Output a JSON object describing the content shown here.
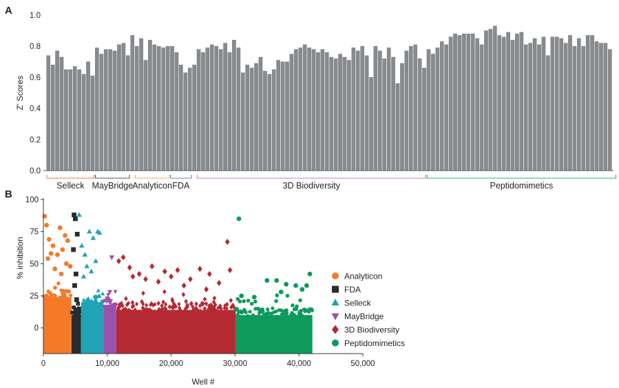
{
  "chart_data": [
    {
      "panel": "A",
      "type": "bar",
      "ylabel": "Z' Scores",
      "ylim": [
        0.0,
        1.0
      ],
      "yticks": [
        "0.0",
        "0.2",
        "0.4",
        "0.6",
        "0.8",
        "1.0"
      ],
      "values": [
        0.74,
        0.68,
        0.77,
        0.73,
        0.65,
        0.65,
        0.67,
        0.65,
        0.62,
        0.7,
        0.61,
        0.79,
        0.75,
        0.78,
        0.78,
        0.77,
        0.81,
        0.82,
        0.74,
        0.87,
        0.8,
        0.85,
        0.71,
        0.84,
        0.81,
        0.8,
        0.79,
        0.8,
        0.8,
        0.76,
        0.68,
        0.63,
        0.66,
        0.68,
        0.78,
        0.76,
        0.79,
        0.81,
        0.8,
        0.78,
        0.82,
        0.76,
        0.84,
        0.79,
        0.63,
        0.68,
        0.66,
        0.69,
        0.73,
        0.64,
        0.62,
        0.65,
        0.71,
        0.7,
        0.7,
        0.75,
        0.78,
        0.79,
        0.81,
        0.79,
        0.78,
        0.76,
        0.78,
        0.76,
        0.73,
        0.72,
        0.75,
        0.73,
        0.71,
        0.79,
        0.77,
        0.8,
        0.74,
        0.6,
        0.8,
        0.77,
        0.72,
        0.79,
        0.73,
        0.56,
        0.69,
        0.77,
        0.8,
        0.81,
        0.72,
        0.66,
        0.78,
        0.75,
        0.79,
        0.83,
        0.81,
        0.86,
        0.88,
        0.87,
        0.88,
        0.88,
        0.88,
        0.85,
        0.81,
        0.9,
        0.91,
        0.93,
        0.87,
        0.86,
        0.89,
        0.84,
        0.88,
        0.89,
        0.81,
        0.82,
        0.85,
        0.81,
        0.86,
        0.74,
        0.86,
        0.86,
        0.85,
        0.82,
        0.87,
        0.8,
        0.85,
        0.8,
        0.87,
        0.87,
        0.83,
        0.82,
        0.82,
        0.78
      ],
      "libraries": [
        {
          "name": "Selleck",
          "start": 0,
          "end": 10,
          "color": "#e8784f"
        },
        {
          "name": "MayBridge",
          "start": 11,
          "end": 18,
          "color": "#555555"
        },
        {
          "name": "Analyticon",
          "start": 20,
          "end": 27,
          "color": "#f0a86a"
        },
        {
          "name": "FDA",
          "start": 28,
          "end": 32,
          "color": "#6b82b8"
        },
        {
          "name": "3D Biodiversity",
          "start": 34,
          "end": 85,
          "color": "#c47fbd"
        },
        {
          "name": "Peptidomimetics",
          "start": 86,
          "end": 128,
          "color": "#3aaa7a"
        }
      ]
    },
    {
      "panel": "B",
      "type": "scatter",
      "xlabel": "Well #",
      "ylabel": "% inhibition",
      "xlim": [
        0,
        50000
      ],
      "ylim": [
        -20,
        100
      ],
      "xticks": [
        "0",
        "10,000",
        "20,000",
        "30,000",
        "40,000",
        "50,000"
      ],
      "yticks": [
        "0",
        "25",
        "50",
        "75",
        "100"
      ],
      "series": [
        {
          "name": "Analyticon",
          "color": "#f47a2a",
          "marker": "circle",
          "x_range": [
            0,
            4400
          ],
          "band": [
            -20,
            24
          ],
          "outliers": [
            [
              200,
              87
            ],
            [
              500,
              80
            ],
            [
              900,
              69
            ],
            [
              1500,
              64
            ],
            [
              2200,
              57
            ],
            [
              2600,
              78
            ],
            [
              3000,
              61
            ],
            [
              3400,
              72
            ],
            [
              3800,
              68
            ],
            [
              4200,
              48
            ],
            [
              700,
              54
            ],
            [
              1800,
              46
            ],
            [
              2800,
              42
            ],
            [
              3600,
              50
            ],
            [
              1200,
              58
            ]
          ]
        },
        {
          "name": "FDA",
          "color": "#2b2b2b",
          "marker": "square",
          "x_range": [
            4400,
            5900
          ],
          "band": [
            -20,
            10
          ],
          "outliers": [
            [
              4800,
              88
            ],
            [
              5000,
              85
            ],
            [
              5300,
              73
            ],
            [
              4700,
              61
            ],
            [
              5100,
              42
            ],
            [
              4900,
              33
            ],
            [
              5200,
              22
            ]
          ]
        },
        {
          "name": "Selleck",
          "color": "#1fa3b5",
          "marker": "triangle-up",
          "x_range": [
            5900,
            9400
          ],
          "band": [
            -20,
            20
          ],
          "outliers": [
            [
              5600,
              88
            ],
            [
              6000,
              64
            ],
            [
              6500,
              57
            ],
            [
              7200,
              75
            ],
            [
              7800,
              70
            ],
            [
              8500,
              75
            ],
            [
              8800,
              74
            ],
            [
              6800,
              48
            ],
            [
              7500,
              44
            ],
            [
              8200,
              52
            ],
            [
              6300,
              40
            ]
          ]
        },
        {
          "name": "MayBridge",
          "color": "#9b52ad",
          "marker": "triangle-down",
          "x_range": [
            9400,
            11400
          ],
          "band": [
            -20,
            18
          ],
          "outliers": [
            [
              10700,
              55
            ],
            [
              10000,
              23
            ],
            [
              10400,
              28
            ]
          ]
        },
        {
          "name": "3D Biodiversity",
          "color": "#b52a32",
          "marker": "diamond",
          "x_range": [
            11400,
            30100
          ],
          "band": [
            -20,
            14
          ],
          "outliers": [
            [
              11800,
              52
            ],
            [
              12500,
              55
            ],
            [
              13500,
              47
            ],
            [
              15000,
              42
            ],
            [
              17000,
              48
            ],
            [
              19000,
              44
            ],
            [
              21000,
              45
            ],
            [
              23000,
              38
            ],
            [
              24500,
              46
            ],
            [
              26000,
              42
            ],
            [
              27500,
              35
            ],
            [
              28800,
              67
            ],
            [
              29200,
              45
            ],
            [
              16000,
              38
            ],
            [
              22000,
              33
            ],
            [
              25500,
              30
            ],
            [
              20000,
              40
            ],
            [
              14000,
              40
            ],
            [
              18000,
              36
            ]
          ]
        },
        {
          "name": "Peptidomimetics",
          "color": "#0e9a5a",
          "marker": "circle",
          "x_range": [
            30100,
            42100
          ],
          "band": [
            -20,
            10
          ],
          "outliers": [
            [
              30600,
              85
            ],
            [
              35000,
              37
            ],
            [
              36500,
              37
            ],
            [
              38000,
              34
            ],
            [
              39500,
              33
            ],
            [
              41200,
              33
            ],
            [
              41700,
              42
            ],
            [
              40500,
              30
            ],
            [
              33000,
              24
            ],
            [
              37200,
              28
            ],
            [
              31000,
              25
            ]
          ]
        }
      ]
    }
  ]
}
